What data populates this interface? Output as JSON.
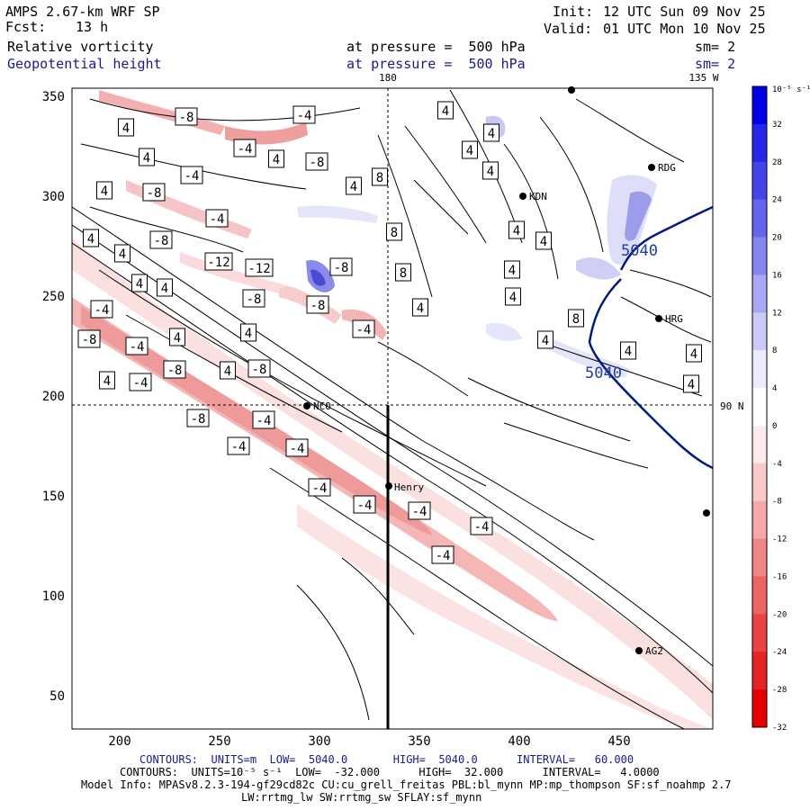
{
  "header": {
    "model": "AMPS 2.67-km WRF SP",
    "init_label": "Init:",
    "init_time": "12 UTC Sun 09 Nov 25",
    "fcst_label": "Fcst:",
    "fcst_hours": "13 h",
    "valid_label": "Valid:",
    "valid_time": "01 UTC Mon 10 Nov 25",
    "field1": "Relative vorticity",
    "field2": "Geopotential height",
    "pressure1": "at pressure =  500 hPa",
    "pressure2": "at pressure =  500 hPa",
    "sm1": "sm= 2",
    "sm2": "sm= 2"
  },
  "map": {
    "top_lon_label": "180",
    "top_right_lon_label": "135 W",
    "right_lat_label": "90 N",
    "y_ticks": [
      "350",
      "300",
      "250",
      "200",
      "150",
      "100",
      "50"
    ],
    "x_ticks": [
      "200",
      "250",
      "300",
      "350",
      "400",
      "450"
    ],
    "stations": [
      "NCO",
      "Henry",
      "KDN",
      "RDG",
      "HRG",
      "AG2"
    ],
    "height_labels": [
      "5040",
      "5040"
    ],
    "vort_labels_pos": [
      "4",
      "4",
      "4",
      "4",
      "4",
      "4",
      "4",
      "4",
      "4",
      "8",
      "8",
      "8",
      "4",
      "4",
      "4",
      "4",
      "4",
      "4",
      "4",
      "4",
      "4",
      "4",
      "4",
      "4",
      "4",
      "8",
      "4",
      "4",
      "4",
      "4"
    ],
    "vort_labels_neg": [
      "-8",
      "-4",
      "-4",
      "-8",
      "-4",
      "-8",
      "-4",
      "-8",
      "-12",
      "-12",
      "-8",
      "-8",
      "-8",
      "-4",
      "-4",
      "-8",
      "-4",
      "-8",
      "-8",
      "-4",
      "-8",
      "-4",
      "-4",
      "-4",
      "-4",
      "-4",
      "-4",
      "-4",
      "-4"
    ]
  },
  "colorbar": {
    "units": "10⁻⁵ s⁻¹",
    "labels": [
      "32",
      "28",
      "24",
      "20",
      "16",
      "12",
      "8",
      "4",
      "0",
      "-4",
      "-8",
      "-12",
      "-16",
      "-20",
      "-24",
      "-28",
      "-32"
    ],
    "colors": [
      "#0000e6",
      "#2626e8",
      "#4444ea",
      "#6464ee",
      "#8686f0",
      "#a8a8f4",
      "#cacaf8",
      "#ececfc",
      "#ffffff",
      "#fdeaea",
      "#f9c9c9",
      "#f5a8a8",
      "#f18686",
      "#ed6464",
      "#e94444",
      "#e52424",
      "#e50000"
    ]
  },
  "footer": {
    "contour1": "CONTOURS:  UNITS=m  LOW=  5040.0       HIGH=  5040.0      INTERVAL=   60.000",
    "contour2": "CONTOURS:  UNITS=10⁻⁵ s⁻¹  LOW=  -32.000      HIGH=  32.000      INTERVAL=   4.0000",
    "model_info": "Model Info: MPASv8.2.3-194-gf29cd82c CU:cu_grell_freitas PBL:bl_mynn MP:mp_thompson SF:sf_noahmp 2.7",
    "model_info2": "LW:rrtmg_lw SW:rrtmg_sw SFLAY:sf_mynn"
  }
}
